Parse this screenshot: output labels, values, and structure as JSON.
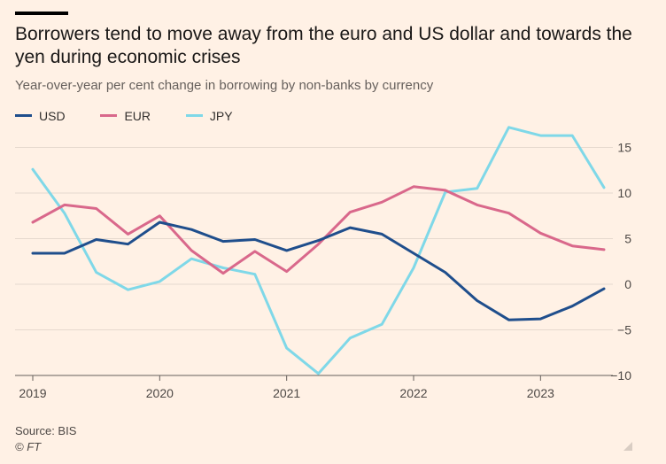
{
  "header": {
    "title": "Borrowers tend to move away from the euro and US dollar and towards the yen during economic crises",
    "subtitle": "Year-over-year per cent change in borrowing by non-banks by currency"
  },
  "footer": {
    "source": "Source: BIS",
    "credit": "© FT"
  },
  "colors": {
    "USD": "#1f4e8c",
    "EUR": "#d9688b",
    "JPY": "#7fd8e8",
    "grid": "#e6d9ce",
    "background": "#fff1e5"
  },
  "chart_data": {
    "type": "line",
    "title": "Borrowers tend to move away from the euro and US dollar and towards the yen during economic crises",
    "subtitle": "Year-over-year per cent change in borrowing by non-banks by currency",
    "x": [
      "2019-Q1",
      "2019-Q2",
      "2019-Q3",
      "2019-Q4",
      "2020-Q1",
      "2020-Q2",
      "2020-Q3",
      "2020-Q4",
      "2021-Q1",
      "2021-Q2",
      "2021-Q3",
      "2021-Q4",
      "2022-Q1",
      "2022-Q2",
      "2022-Q3",
      "2022-Q4",
      "2023-Q1",
      "2023-Q2",
      "2023-Q3"
    ],
    "x_ticks": [
      {
        "label": "2019",
        "index": 0
      },
      {
        "label": "2020",
        "index": 4
      },
      {
        "label": "2021",
        "index": 8
      },
      {
        "label": "2022",
        "index": 12
      },
      {
        "label": "2023",
        "index": 16
      }
    ],
    "y_ticks": [
      15,
      10,
      5,
      0,
      -5,
      -10
    ],
    "ylim": [
      -10,
      17.5
    ],
    "grid": true,
    "legend": "top-left",
    "series": [
      {
        "name": "USD",
        "values": [
          3.4,
          3.4,
          4.9,
          4.4,
          6.8,
          6.0,
          4.7,
          4.9,
          3.7,
          4.8,
          6.2,
          5.5,
          3.4,
          1.3,
          -1.8,
          -3.9,
          -3.8,
          -2.4,
          -0.5
        ]
      },
      {
        "name": "EUR",
        "values": [
          6.8,
          8.7,
          8.3,
          5.5,
          7.5,
          3.7,
          1.2,
          3.6,
          1.4,
          4.4,
          7.9,
          9.0,
          10.7,
          10.3,
          8.7,
          7.8,
          5.6,
          4.2,
          3.8
        ]
      },
      {
        "name": "JPY",
        "values": [
          12.6,
          7.8,
          1.3,
          -0.6,
          0.3,
          2.8,
          1.8,
          1.1,
          -7.0,
          -9.8,
          -5.9,
          -4.4,
          1.8,
          10.1,
          10.5,
          17.2,
          16.3,
          16.3,
          10.6
        ]
      }
    ]
  }
}
